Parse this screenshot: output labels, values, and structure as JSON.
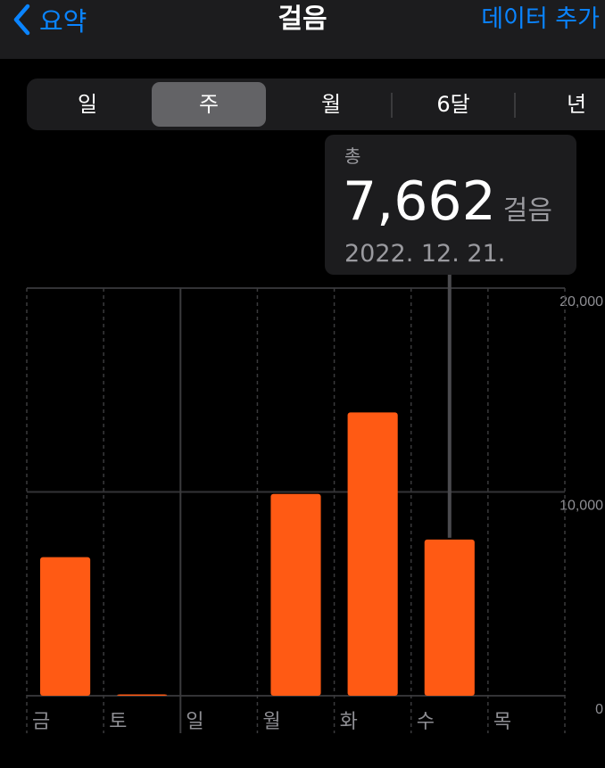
{
  "nav": {
    "back_label": "요약",
    "title": "걸음",
    "action_label": "데이터 추가"
  },
  "segments": [
    {
      "label": "일",
      "selected": false
    },
    {
      "label": "주",
      "selected": true
    },
    {
      "label": "월",
      "selected": false
    },
    {
      "label": "6달",
      "selected": false
    },
    {
      "label": "년",
      "selected": false
    }
  ],
  "tooltip": {
    "label": "총",
    "value": "7,662",
    "unit": "걸음",
    "date": "2022. 12. 21."
  },
  "colors": {
    "accent": "#0a84ff",
    "bar": "#ff5a14"
  },
  "chart_data": {
    "type": "bar",
    "categories": [
      "금",
      "토",
      "일",
      "월",
      "화",
      "수",
      "목"
    ],
    "values": [
      6800,
      30,
      0,
      9900,
      13900,
      7662,
      0
    ],
    "yticks": [
      "20,000",
      "10,000",
      "0"
    ],
    "ylim": [
      0,
      20000
    ],
    "grid": true,
    "highlighted": "수"
  }
}
